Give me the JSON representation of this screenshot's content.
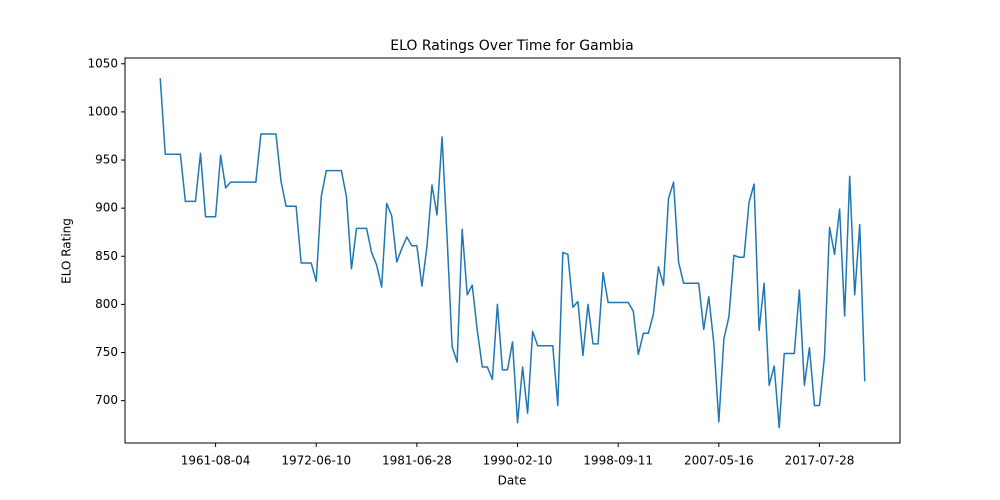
{
  "chart_data": {
    "type": "line",
    "title": "ELO Ratings Over Time for Gambia",
    "xlabel": "Date",
    "ylabel": "ELO Rating",
    "categories": [
      null,
      null,
      null,
      null,
      null,
      null,
      null,
      null,
      null,
      null,
      null,
      "1961-08-04",
      null,
      null,
      null,
      null,
      null,
      null,
      null,
      null,
      null,
      null,
      null,
      null,
      null,
      null,
      null,
      null,
      null,
      null,
      null,
      "1972-06-10",
      null,
      null,
      null,
      null,
      null,
      null,
      null,
      null,
      null,
      null,
      null,
      null,
      null,
      null,
      null,
      null,
      null,
      null,
      null,
      "1981-06-28",
      null,
      null,
      null,
      null,
      null,
      null,
      null,
      null,
      null,
      null,
      null,
      null,
      null,
      null,
      null,
      null,
      null,
      null,
      null,
      "1990-02-10",
      null,
      null,
      null,
      null,
      null,
      null,
      null,
      null,
      null,
      null,
      null,
      null,
      null,
      null,
      null,
      null,
      null,
      null,
      null,
      "1998-09-11",
      null,
      null,
      null,
      null,
      null,
      null,
      null,
      null,
      null,
      null,
      null,
      null,
      null,
      null,
      null,
      null,
      null,
      null,
      null,
      "2007-05-16",
      null,
      null,
      null,
      null,
      null,
      null,
      null,
      null,
      null,
      null,
      null,
      null,
      null,
      null,
      null,
      null,
      null,
      null,
      null,
      "2017-07-28",
      null,
      null,
      null,
      null,
      null,
      null,
      null,
      null,
      null
    ],
    "series": [
      {
        "name": "Gambia",
        "color": "#1f77b4",
        "values": [
          1035,
          956,
          956,
          956,
          956,
          907,
          907,
          907,
          957,
          891,
          891,
          891,
          955,
          921,
          927,
          927,
          927,
          927,
          927,
          927,
          977,
          977,
          977,
          977,
          928,
          902,
          902,
          902,
          843,
          843,
          843,
          824,
          912,
          939,
          939,
          939,
          939,
          912,
          837,
          879,
          879,
          879,
          854,
          841,
          818,
          905,
          892,
          844,
          858,
          870,
          861,
          861,
          819,
          860,
          924,
          893,
          974,
          870,
          756,
          740,
          878,
          810,
          820,
          773,
          735,
          735,
          722,
          800,
          732,
          732,
          761,
          677,
          735,
          687,
          772,
          757,
          757,
          757,
          757,
          695,
          854,
          852,
          797,
          803,
          747,
          800,
          759,
          759,
          833,
          802,
          802,
          802,
          802,
          802,
          793,
          748,
          770,
          770,
          790,
          839,
          820,
          910,
          927,
          844,
          822,
          822,
          822,
          822,
          774,
          808,
          760,
          678,
          764,
          787,
          851,
          849,
          849,
          906,
          925,
          773,
          822,
          716,
          736,
          672,
          749,
          749,
          749,
          815,
          716,
          755,
          695,
          695,
          746,
          880,
          852,
          899,
          788,
          933,
          810,
          883,
          720
        ]
      }
    ],
    "ylim": [
      656,
      1056
    ],
    "yticks": [
      700,
      750,
      800,
      850,
      900,
      950,
      1000,
      1050
    ],
    "grid": false
  }
}
